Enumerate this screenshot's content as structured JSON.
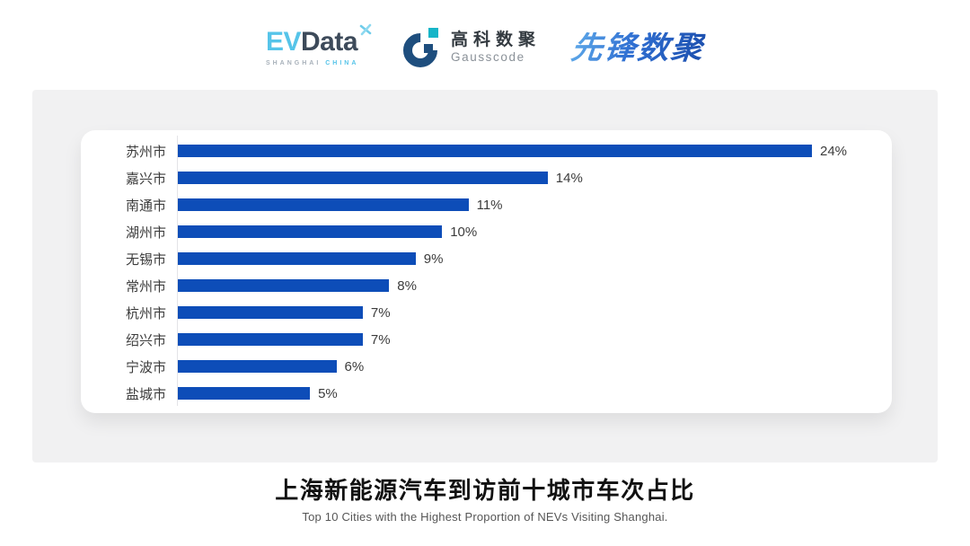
{
  "header": {
    "evdata": {
      "ev": "EV",
      "data": "Data",
      "sub_left": "SHANGHAI",
      "sub_right": "CHINA"
    },
    "gausscode": {
      "cn": "高科数聚",
      "en": "Gausscode"
    },
    "xianfeng": {
      "text": "先锋数聚"
    }
  },
  "chart_data": {
    "type": "bar",
    "orientation": "horizontal",
    "title": "上海新能源汽车到访前十城市车次占比",
    "categories": [
      "苏州市",
      "嘉兴市",
      "南通市",
      "湖州市",
      "无锡市",
      "常州市",
      "杭州市",
      "绍兴市",
      "宁波市",
      "盐城市"
    ],
    "values": [
      24,
      14,
      11,
      10,
      9,
      8,
      7,
      7,
      6,
      5
    ],
    "unit": "%",
    "xlim": [
      0,
      24
    ],
    "grid": false,
    "legend": false,
    "value_labels": "outside-end"
  },
  "footer": {
    "title": "上海新能源汽车到访前十城市车次占比",
    "subtitle": "Top 10 Cities with the Highest Proportion of  NEVs Visiting Shanghai."
  },
  "colors": {
    "bar": "#0D4DB8",
    "panel": "#F1F1F2",
    "axis": "#E4E4E7",
    "evdata_blue": "#56C4E9",
    "evdata_dark": "#3D4A5A",
    "gauss_dark": "#1E4E7E",
    "gauss_cyan": "#16B5C8",
    "xianfeng_blue": "#2F6FD2"
  }
}
